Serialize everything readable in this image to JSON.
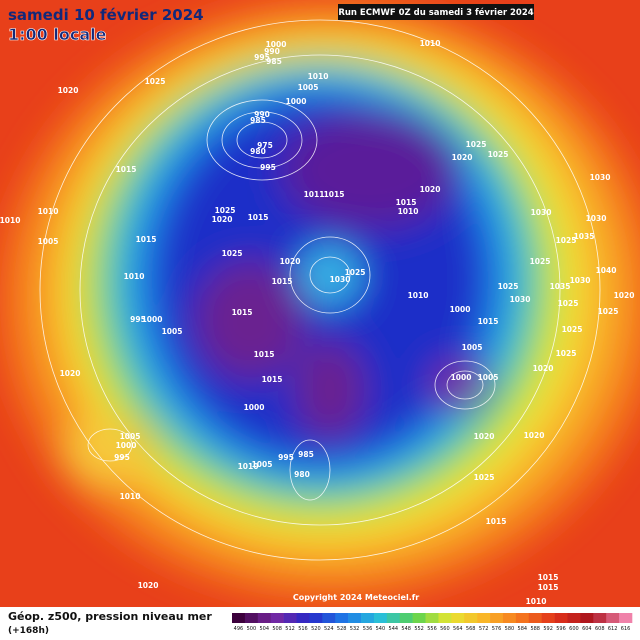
{
  "header": {
    "title": "samedi 10 février 2024",
    "time": "1:00 locale",
    "run": "Run ECMWF 0Z du samedi 3 février 2024"
  },
  "copyright": "Copyright 2024 Meteociel.fr",
  "footer": {
    "caption": "Géop. z500, pression niveau mer",
    "lead": "(+168h)"
  },
  "legend": {
    "labels": [
      496,
      500,
      504,
      508,
      512,
      516,
      520,
      524,
      528,
      532,
      536,
      540,
      544,
      548,
      552,
      556,
      560,
      564,
      568,
      572,
      576,
      580,
      584,
      588,
      592,
      596,
      600,
      604,
      608,
      612,
      616
    ]
  },
  "isobar_labels": [
    1000,
    990,
    995,
    985,
    1010,
    1025,
    1020,
    1010,
    1005,
    1000,
    990,
    985,
    975,
    980,
    995,
    1025,
    1025,
    1020,
    1030,
    1015,
    1020,
    1010,
    1010,
    1011,
    1015,
    1015,
    1010,
    1025,
    1020,
    1015,
    1030,
    1030,
    1015,
    1005,
    1025,
    1035,
    1025,
    1025,
    1020,
    1025,
    1030,
    1015,
    1010,
    1040,
    1030,
    1025,
    1035,
    1030,
    1025,
    1010,
    1000,
    995,
    1000,
    1015,
    1015,
    1020,
    1025,
    1005,
    1025,
    1005,
    1015,
    1025,
    1020,
    1015,
    1000,
    1005,
    1020,
    1000,
    1020,
    1020,
    1005,
    1000,
    995,
    980,
    985,
    1010,
    1005,
    995,
    1025,
    1010,
    1015,
    1020,
    1015,
    1015,
    1010
  ]
}
